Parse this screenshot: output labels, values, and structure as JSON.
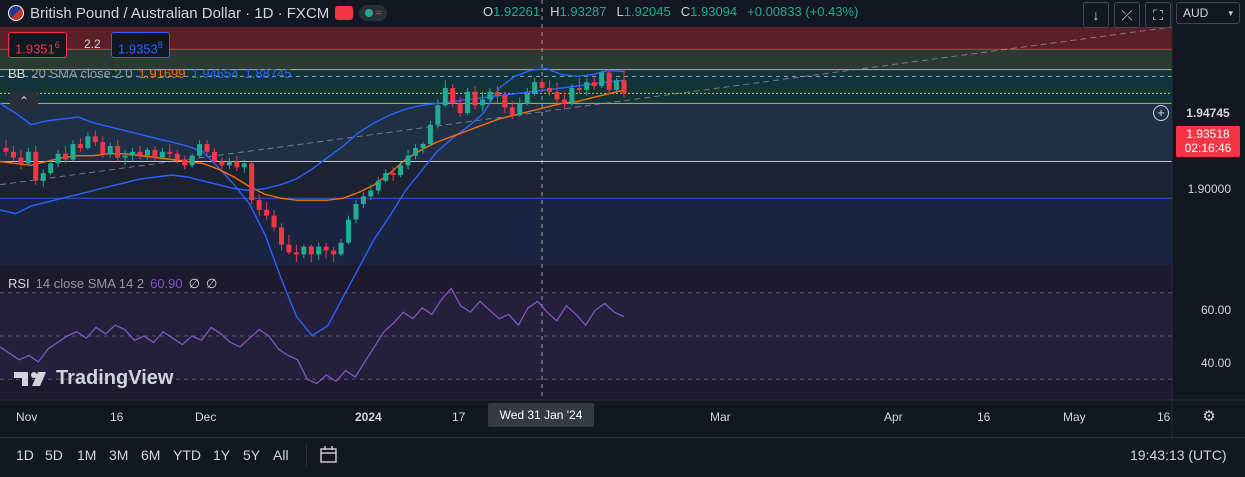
{
  "header": {
    "symbol_title": "British Pound / Australian Dollar · 1D · FXCM",
    "ohlc": {
      "o_label": "O",
      "o_value": "1.92261",
      "h_label": "H",
      "h_value": "1.93287",
      "l_label": "L",
      "l_value": "1.92045",
      "c_label": "C",
      "c_value": "1.93094",
      "change": "+0.00833 (+0.43%)"
    },
    "sell_price_main": "1.9351",
    "sell_price_small": "6",
    "spread": "2.2",
    "buy_price_main": "1.9353",
    "buy_price_small": "8"
  },
  "bb": {
    "name": "BB",
    "params": "20 SMA close 2 0",
    "basis": "1.91699",
    "upper": "1.94654",
    "lower": "1.88745"
  },
  "rsi": {
    "name": "RSI",
    "params": "14 close SMA 14 2",
    "value": "60.90",
    "v2": "∅",
    "v3": "∅"
  },
  "toolbar": {
    "currency": "AUD"
  },
  "price_axis": {
    "labels": [
      "1.90000"
    ],
    "line_label": "1.94745",
    "current_price": "1.93518",
    "countdown": "02:16:46",
    "rsi_labels": [
      "60.00",
      "40.00"
    ]
  },
  "time_axis": {
    "labels": [
      "Nov",
      "16",
      "Dec",
      "2024",
      "17",
      "Mar",
      "Apr",
      "16",
      "May",
      "16"
    ],
    "crosshair": "Wed 31 Jan '24"
  },
  "timeframes": [
    "1D",
    "5D",
    "1M",
    "3M",
    "6M",
    "YTD",
    "1Y",
    "5Y",
    "All"
  ],
  "clock": "19:43:13 (UTC)",
  "watermark": "TradingView",
  "colors": {
    "up": "#22ab94",
    "down": "#f23645",
    "bb_basis": "#ff6d00",
    "bb_band": "#2962ff",
    "rsi": "#7e57c2"
  },
  "chart_data": {
    "type": "candlestick",
    "candles_ohlc": [
      [
        1.907,
        1.911,
        1.903,
        1.905
      ],
      [
        1.905,
        1.908,
        1.9,
        1.902
      ],
      [
        1.902,
        1.906,
        1.896,
        1.899
      ],
      [
        1.899,
        1.907,
        1.898,
        1.905
      ],
      [
        1.905,
        1.908,
        1.888,
        1.89
      ],
      [
        1.89,
        1.896,
        1.887,
        1.894
      ],
      [
        1.894,
        1.901,
        1.893,
        1.899
      ],
      [
        1.899,
        1.906,
        1.897,
        1.904
      ],
      [
        1.904,
        1.908,
        1.899,
        1.901
      ],
      [
        1.901,
        1.911,
        1.9,
        1.909
      ],
      [
        1.909,
        1.912,
        1.905,
        1.907
      ],
      [
        1.907,
        1.915,
        1.906,
        1.913
      ],
      [
        1.913,
        1.916,
        1.908,
        1.91
      ],
      [
        1.91,
        1.913,
        1.902,
        1.904
      ],
      [
        1.904,
        1.91,
        1.902,
        1.908
      ],
      [
        1.908,
        1.911,
        1.9,
        1.902
      ],
      [
        1.902,
        1.906,
        1.898,
        1.903
      ],
      [
        1.903,
        1.907,
        1.9,
        1.905
      ],
      [
        1.905,
        1.908,
        1.901,
        1.903
      ],
      [
        1.903,
        1.907,
        1.901,
        1.906
      ],
      [
        1.906,
        1.908,
        1.9,
        1.902
      ],
      [
        1.902,
        1.907,
        1.901,
        1.905
      ],
      [
        1.905,
        1.909,
        1.902,
        1.904
      ],
      [
        1.904,
        1.906,
        1.899,
        1.901
      ],
      [
        1.901,
        1.903,
        1.896,
        1.898
      ],
      [
        1.898,
        1.904,
        1.897,
        1.903
      ],
      [
        1.903,
        1.911,
        1.902,
        1.909
      ],
      [
        1.909,
        1.911,
        1.903,
        1.905
      ],
      [
        1.905,
        1.907,
        1.899,
        1.9
      ],
      [
        1.9,
        1.902,
        1.896,
        1.898
      ],
      [
        1.898,
        1.902,
        1.896,
        1.9
      ],
      [
        1.9,
        1.903,
        1.895,
        1.897
      ],
      [
        1.897,
        1.901,
        1.894,
        1.899
      ],
      [
        1.899,
        1.9,
        1.878,
        1.88
      ],
      [
        1.88,
        1.883,
        1.872,
        1.875
      ],
      [
        1.875,
        1.879,
        1.87,
        1.872
      ],
      [
        1.872,
        1.875,
        1.864,
        1.866
      ],
      [
        1.866,
        1.868,
        1.854,
        1.857
      ],
      [
        1.857,
        1.862,
        1.852,
        1.853
      ],
      [
        1.853,
        1.857,
        1.848,
        1.852
      ],
      [
        1.852,
        1.857,
        1.85,
        1.856
      ],
      [
        1.856,
        1.857,
        1.848,
        1.852
      ],
      [
        1.852,
        1.858,
        1.849,
        1.856
      ],
      [
        1.856,
        1.858,
        1.85,
        1.854
      ],
      [
        1.854,
        1.856,
        1.848,
        1.852
      ],
      [
        1.852,
        1.86,
        1.851,
        1.858
      ],
      [
        1.858,
        1.872,
        1.857,
        1.87
      ],
      [
        1.87,
        1.88,
        1.868,
        1.878
      ],
      [
        1.878,
        1.884,
        1.876,
        1.882
      ],
      [
        1.882,
        1.888,
        1.88,
        1.885
      ],
      [
        1.885,
        1.892,
        1.883,
        1.89
      ],
      [
        1.89,
        1.896,
        1.889,
        1.894
      ],
      [
        1.894,
        1.897,
        1.89,
        1.893
      ],
      [
        1.893,
        1.9,
        1.892,
        1.898
      ],
      [
        1.898,
        1.906,
        1.896,
        1.903
      ],
      [
        1.903,
        1.909,
        1.901,
        1.907
      ],
      [
        1.907,
        1.91,
        1.904,
        1.909
      ],
      [
        1.909,
        1.921,
        1.908,
        1.919
      ],
      [
        1.919,
        1.932,
        1.917,
        1.929
      ],
      [
        1.929,
        1.942,
        1.928,
        1.938
      ],
      [
        1.938,
        1.94,
        1.928,
        1.93
      ],
      [
        1.93,
        1.933,
        1.923,
        1.925
      ],
      [
        1.925,
        1.938,
        1.924,
        1.936
      ],
      [
        1.936,
        1.939,
        1.927,
        1.929
      ],
      [
        1.929,
        1.936,
        1.926,
        1.932
      ],
      [
        1.932,
        1.938,
        1.93,
        1.936
      ],
      [
        1.936,
        1.939,
        1.93,
        1.934
      ],
      [
        1.934,
        1.936,
        1.925,
        1.928
      ],
      [
        1.928,
        1.931,
        1.922,
        1.924
      ],
      [
        1.924,
        1.933,
        1.923,
        1.93
      ],
      [
        1.93,
        1.938,
        1.929,
        1.935
      ],
      [
        1.935,
        1.943,
        1.934,
        1.941
      ],
      [
        1.941,
        1.943,
        1.936,
        1.938
      ],
      [
        1.938,
        1.942,
        1.934,
        1.936
      ],
      [
        1.936,
        1.941,
        1.93,
        1.932
      ],
      [
        1.932,
        1.936,
        1.927,
        1.93
      ],
      [
        1.93,
        1.94,
        1.929,
        1.938
      ],
      [
        1.938,
        1.943,
        1.935,
        1.937
      ],
      [
        1.937,
        1.943,
        1.934,
        1.941
      ],
      [
        1.941,
        1.944,
        1.937,
        1.939
      ],
      [
        1.939,
        1.947,
        1.938,
        1.946
      ],
      [
        1.946,
        1.947,
        1.935,
        1.937
      ],
      [
        1.937,
        1.943,
        1.936,
        1.942
      ],
      [
        1.942,
        1.948,
        1.933,
        1.935
      ]
    ],
    "bb_upper": [
      1.93,
      1.925,
      1.919,
      1.921,
      1.922,
      1.923,
      1.92,
      1.918,
      1.916,
      1.914,
      1.912,
      1.91,
      1.908,
      1.905,
      1.897,
      1.888,
      1.878,
      1.862,
      1.84,
      1.82,
      1.81,
      1.815,
      1.83,
      1.845,
      1.86,
      1.872,
      1.885,
      1.895,
      1.905,
      1.912,
      1.918,
      1.925,
      1.938,
      1.944,
      1.947,
      1.948,
      1.945,
      1.944,
      1.945,
      1.947,
      1.9465
    ],
    "bb_basis": [
      1.9,
      1.899,
      1.898,
      1.9,
      1.902,
      1.903,
      1.903,
      1.904,
      1.904,
      1.903,
      1.902,
      1.901,
      1.9,
      1.899,
      1.896,
      1.892,
      1.887,
      1.883,
      1.881,
      1.88,
      1.88,
      1.88,
      1.881,
      1.884,
      1.888,
      1.894,
      1.901,
      1.906,
      1.91,
      1.913,
      1.916,
      1.919,
      1.922,
      1.924,
      1.926,
      1.928,
      1.93,
      1.931,
      1.933,
      1.935,
      1.937
    ],
    "bb_lower": [
      1.875,
      1.873,
      1.877,
      1.879,
      1.881,
      1.883,
      1.885,
      1.887,
      1.889,
      1.891,
      1.892,
      1.893,
      1.892,
      1.89,
      1.888,
      1.886,
      1.885,
      1.886,
      1.888,
      1.891,
      1.896,
      1.902,
      1.908,
      1.915,
      1.92,
      1.924,
      1.927,
      1.929,
      1.93,
      1.931,
      1.932,
      1.933,
      1.934,
      1.935,
      1.936,
      1.937,
      1.938,
      1.939,
      1.94,
      1.941,
      1.942
    ],
    "rsi": [
      45,
      42,
      39,
      41,
      38,
      44,
      47,
      50,
      52,
      49,
      54,
      51,
      55,
      53,
      48,
      50,
      47,
      52,
      49,
      46,
      50,
      48,
      54,
      51,
      47,
      45,
      49,
      53,
      50,
      44,
      41,
      39,
      30,
      28,
      32,
      29,
      34,
      31,
      38,
      45,
      52,
      56,
      61,
      58,
      63,
      60,
      67,
      72,
      64,
      61,
      66,
      62,
      58,
      60,
      55,
      63,
      66,
      61,
      57,
      64,
      60,
      55,
      62,
      65,
      61,
      59
    ],
    "horizontal_levels": [
      1.94745,
      1.93518,
      1.9
    ]
  }
}
